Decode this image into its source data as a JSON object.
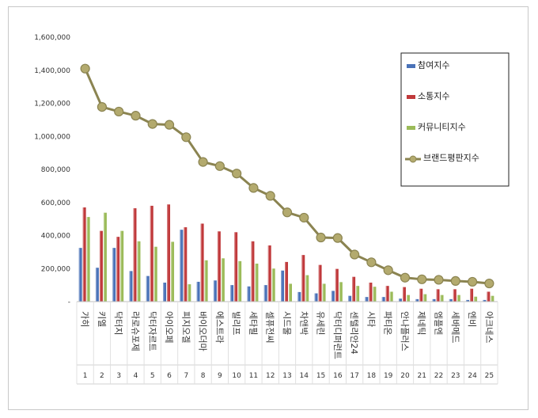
{
  "chart_data": {
    "type": "bar",
    "title": "",
    "xlabel": "",
    "ylabel": "",
    "ylim": [
      0,
      1600000
    ],
    "yticks": [
      "-",
      "200,000",
      "400,000",
      "600,000",
      "800,000",
      "1,000,000",
      "1,200,000",
      "1,400,000",
      "1,600,000"
    ],
    "grid": false,
    "legend_position": "top-right",
    "categories": [
      "가히",
      "키엘",
      "닥터지",
      "라로슈포제",
      "닥터자르트",
      "아이오페",
      "피지오겔",
      "바이오더마",
      "에스트라",
      "빌리프",
      "세타필",
      "셀퓨전씨",
      "시드물",
      "차앤박",
      "유세린",
      "닥터디퍼런트",
      "센텔리안24",
      "시타",
      "파티온",
      "안나플러스",
      "제네틱",
      "엠플엔",
      "세바메드",
      "엔비",
      "아크네스"
    ],
    "ranks": [
      "1",
      "2",
      "3",
      "4",
      "5",
      "6",
      "7",
      "8",
      "9",
      "10",
      "11",
      "12",
      "13",
      "14",
      "15",
      "16",
      "17",
      "18",
      "19",
      "20",
      "21",
      "22",
      "23",
      "24",
      "25"
    ],
    "series": [
      {
        "name": "참여지수",
        "type": "bar",
        "color": "#4a72b8",
        "values": [
          325000,
          205000,
          325000,
          185000,
          155000,
          115000,
          435000,
          120000,
          128000,
          100000,
          92000,
          100000,
          188000,
          58000,
          50000,
          65000,
          35000,
          28000,
          28000,
          18000,
          15000,
          15000,
          15000,
          10000,
          10000
        ]
      },
      {
        "name": "소통지수",
        "type": "bar",
        "color": "#c0393b",
        "values": [
          570000,
          428000,
          392000,
          565000,
          580000,
          588000,
          450000,
          472000,
          425000,
          420000,
          365000,
          340000,
          240000,
          282000,
          222000,
          198000,
          150000,
          115000,
          95000,
          88000,
          78000,
          75000,
          75000,
          78000,
          60000
        ]
      },
      {
        "name": "커뮤니티지수",
        "type": "bar",
        "color": "#9bbb59",
        "values": [
          512000,
          538000,
          428000,
          365000,
          332000,
          362000,
          105000,
          250000,
          262000,
          245000,
          230000,
          200000,
          108000,
          160000,
          108000,
          118000,
          95000,
          90000,
          60000,
          40000,
          45000,
          40000,
          40000,
          30000,
          35000
        ]
      },
      {
        "name": "브랜드평판지수",
        "type": "line",
        "color": "#8b8451",
        "values": [
          1410000,
          1178000,
          1150000,
          1125000,
          1075000,
          1070000,
          995000,
          845000,
          820000,
          775000,
          688000,
          640000,
          540000,
          508000,
          388000,
          385000,
          285000,
          238000,
          190000,
          145000,
          135000,
          132000,
          125000,
          120000,
          110000
        ]
      }
    ]
  }
}
